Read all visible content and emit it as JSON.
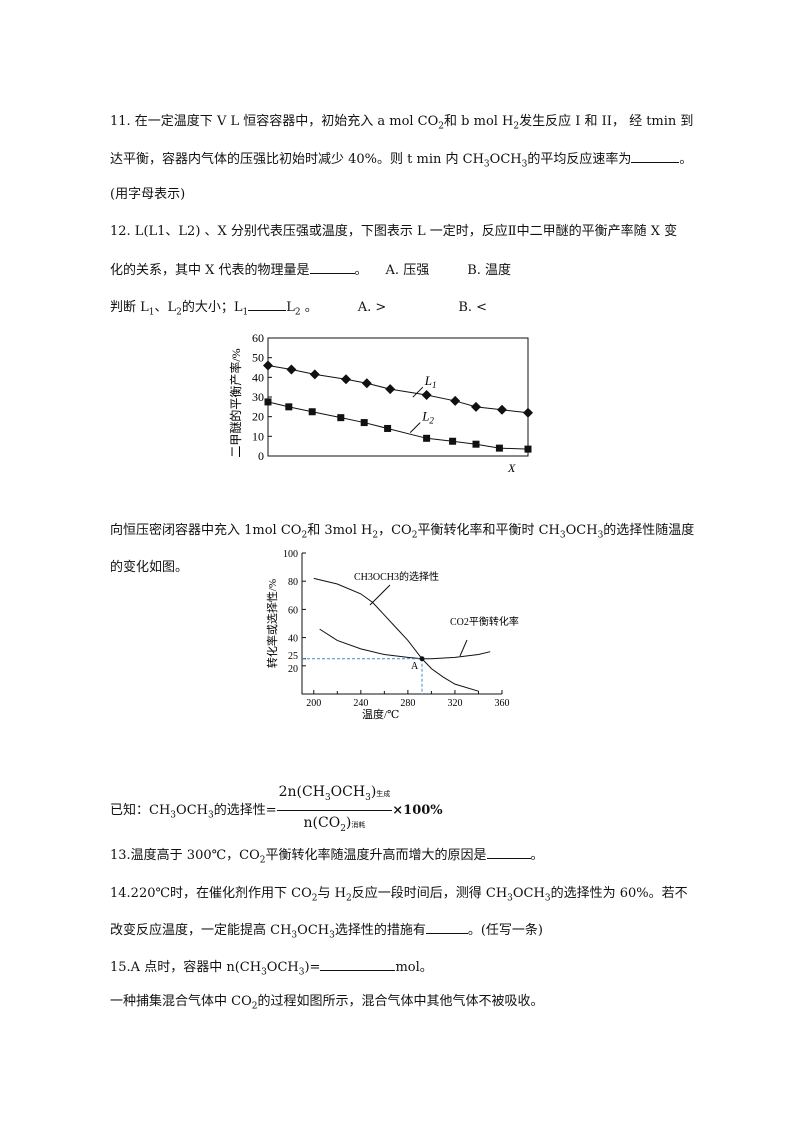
{
  "q11": {
    "line1": "11. 在一定温度下 V L 恒容容器中，初始充入 a mol CO",
    "line1b": "和 b mol H",
    "line1c": "发生反应 I 和 II， 经 tmin 到",
    "line2a": "达平衡，容器内气体的压强比初始时减少 40%。则 t min 内 CH",
    "line2b": "OCH",
    "line2c": "的平均反应速率为",
    "line2d": "。",
    "line3": "(用字母表示)"
  },
  "q12": {
    "line1": "12. L(L1、L2) 、X 分别代表压强或温度，下图表示 L 一定时，反应Ⅱ中二甲醚的平衡产率随 X 变",
    "line2a": "化的关系，其中 X 代表的物理量是",
    "line2b": "。",
    "optA": "A. 压强",
    "optB": "B. 温度",
    "line3a": "判断 L",
    "line3b": "、L",
    "line3c": "的大小；L",
    "line3d": "L",
    "line3e": " 。",
    "optA2": "A. >",
    "optB2": "B. <"
  },
  "intro2": {
    "line1a": "向恒压密闭容器中充入 1mol CO",
    "line1b": "和 3mol H",
    "line1c": "，CO",
    "line1d": "平衡转化率和平衡时 CH",
    "line1e": "OCH",
    "line1f": "的选择性随温度",
    "line2": "的变化如图。"
  },
  "formula": {
    "prefix": "已知：CH",
    "prefix_b": "OCH",
    "prefix_c": "的选择性=",
    "num": "2n(CH",
    "num_b": "OCH",
    "num_c": ")",
    "num_sub": "生成",
    "den": "n(CO",
    "den_b": ")",
    "den_sub": "消耗",
    "suffix": "×100%"
  },
  "q13": {
    "a": "13.温度高于 300℃，CO",
    "b": "平衡转化率随温度升高而增大的原因是",
    "c": "。"
  },
  "q14": {
    "a": "14.220℃时，在催化剂作用下 CO",
    "b": "与 H",
    "c": "反应一段时间后，测得 CH",
    "d": "OCH",
    "e": "的选择性为 60%。若不",
    "f": "改变反应温度，一定能提高 CH",
    "g": "OCH",
    "h": "选择性的措施有",
    "i": "。(任写一条)"
  },
  "q15": {
    "a": "15.A 点时，容器中 n(CH",
    "b": "OCH",
    "c": ")=",
    "d": "mol。"
  },
  "last": {
    "a": "一种捕集混合气体中 CO",
    "b": "的过程如图所示，混合气体中其他气体不被吸收。"
  },
  "chart_data": [
    {
      "type": "line",
      "ylabel": "二甲醚的平衡产率/%",
      "xlabel": "X",
      "ylim": [
        0,
        60
      ],
      "yticks": [
        0,
        10,
        20,
        30,
        40,
        50,
        60
      ],
      "grid": false,
      "series": [
        {
          "name": "L1",
          "marker": "diamond",
          "x": [
            0,
            9,
            18,
            30,
            38,
            47,
            61,
            72,
            80,
            90,
            100
          ],
          "values": [
            46,
            44,
            41.5,
            39,
            37,
            34,
            31,
            28,
            25,
            23.5,
            22
          ]
        },
        {
          "name": "L2",
          "marker": "square",
          "x": [
            0,
            8,
            17,
            28,
            37,
            46,
            61,
            71,
            80,
            89,
            100
          ],
          "values": [
            27.5,
            25,
            22.5,
            19.5,
            17,
            14,
            9,
            7.5,
            6,
            4,
            3.5
          ]
        }
      ]
    },
    {
      "type": "line",
      "xlabel": "温度/℃",
      "ylabel": "转化率或选择性/%",
      "xlim": [
        190,
        360
      ],
      "ylim": [
        0,
        100
      ],
      "xticks": [
        200,
        240,
        280,
        320,
        360
      ],
      "yticks": [
        20,
        25,
        40,
        60,
        80,
        100
      ],
      "grid": false,
      "series": [
        {
          "name": "CH3OCH3的选择性",
          "x": [
            200,
            220,
            240,
            250,
            260,
            270,
            280,
            292,
            300,
            310,
            320,
            340
          ],
          "values": [
            82,
            78,
            71,
            65,
            56,
            47,
            38,
            25,
            18,
            12,
            7,
            2
          ]
        },
        {
          "name": "CO2平衡转化率",
          "x": [
            205,
            220,
            240,
            260,
            280,
            292,
            300,
            320,
            340,
            350
          ],
          "values": [
            46,
            38,
            32,
            28,
            26,
            25,
            25,
            26,
            28,
            30
          ]
        }
      ],
      "annotations": [
        {
          "label": "A",
          "x": 292,
          "y": 25
        }
      ]
    }
  ]
}
